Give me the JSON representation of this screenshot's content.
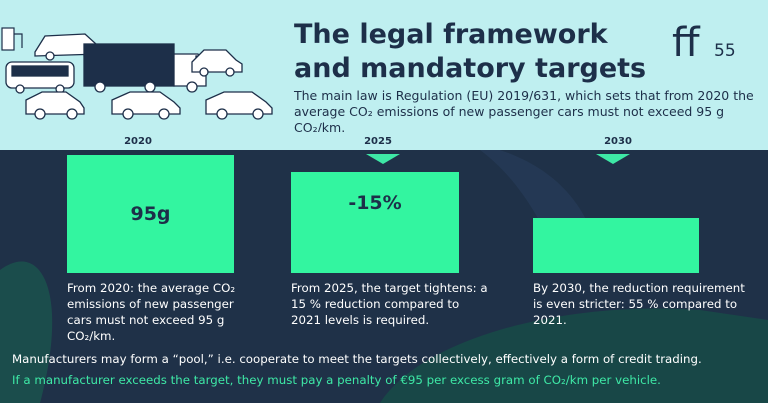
{
  "header": {
    "title": "The legal framework and mandatory targets",
    "subtitle": "The main law is Regulation (EU) 2019/631, which sets that from 2020 the average CO₂ emissions of new passenger cars must not exceed 95 g CO₂/km.",
    "logo_text": "ff55"
  },
  "timeline": [
    {
      "year": "2020",
      "bar_label": "95g",
      "level": 1.0,
      "description": "From 2020: the average CO₂ emissions of new passenger cars must not exceed 95 g CO₂/km."
    },
    {
      "year": "2025",
      "bar_label": "-15%",
      "level": 0.85,
      "description": "From 2025, the target tightens: a 15 % reduction compared to 2021 levels is required."
    },
    {
      "year": "2030",
      "bar_label": "",
      "level": 0.45,
      "description": "By 2030, the reduction requirement is even stricter: 55 % compared to 2021."
    }
  ],
  "footer": {
    "note": "Manufacturers may form a “pool,” i.e. cooperate to meet the targets collectively, effectively a form of credit trading.",
    "penalty": "If a manufacturer exceeds the target, they must pay a penalty of €95 per excess gram of CO₂/km per vehicle."
  },
  "colors": {
    "background": "#1f3148",
    "header_bg": "#bfeff0",
    "accent_green": "#33f5a0",
    "text_dark": "#1d2f49"
  },
  "icons": [
    "car-icon",
    "truck-icon",
    "bus-icon",
    "van-icon"
  ]
}
